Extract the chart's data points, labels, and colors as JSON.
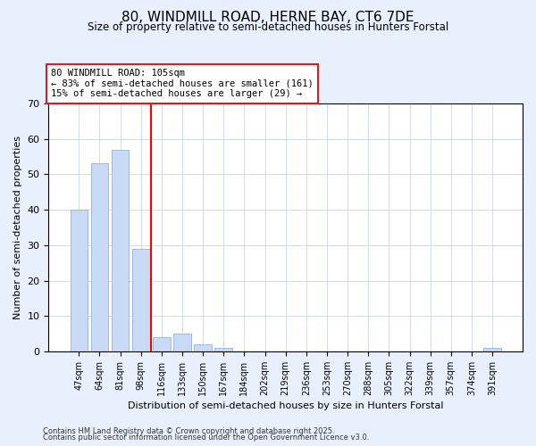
{
  "title": "80, WINDMILL ROAD, HERNE BAY, CT6 7DE",
  "subtitle": "Size of property relative to semi-detached houses in Hunters Forstal",
  "xlabel": "Distribution of semi-detached houses by size in Hunters Forstal",
  "ylabel": "Number of semi-detached properties",
  "categories": [
    "47sqm",
    "64sqm",
    "81sqm",
    "98sqm",
    "116sqm",
    "133sqm",
    "150sqm",
    "167sqm",
    "184sqm",
    "202sqm",
    "219sqm",
    "236sqm",
    "253sqm",
    "270sqm",
    "288sqm",
    "305sqm",
    "322sqm",
    "339sqm",
    "357sqm",
    "374sqm",
    "391sqm"
  ],
  "values": [
    40,
    53,
    57,
    29,
    4,
    5,
    2,
    1,
    0,
    0,
    0,
    0,
    0,
    0,
    0,
    0,
    0,
    0,
    0,
    0,
    1
  ],
  "bar_color": "#c8daf5",
  "bar_edge_color": "#a0b8d8",
  "vline_x": 3.5,
  "vline_color": "red",
  "annotation_title": "80 WINDMILL ROAD: 105sqm",
  "annotation_line1": "← 83% of semi-detached houses are smaller (161)",
  "annotation_line2": "15% of semi-detached houses are larger (29) →",
  "ylim": [
    0,
    70
  ],
  "yticks": [
    0,
    10,
    20,
    30,
    40,
    50,
    60,
    70
  ],
  "background_color": "#e8f0fe",
  "plot_bg_color": "#ffffff",
  "footnote1": "Contains HM Land Registry data © Crown copyright and database right 2025.",
  "footnote2": "Contains public sector information licensed under the Open Government Licence v3.0."
}
